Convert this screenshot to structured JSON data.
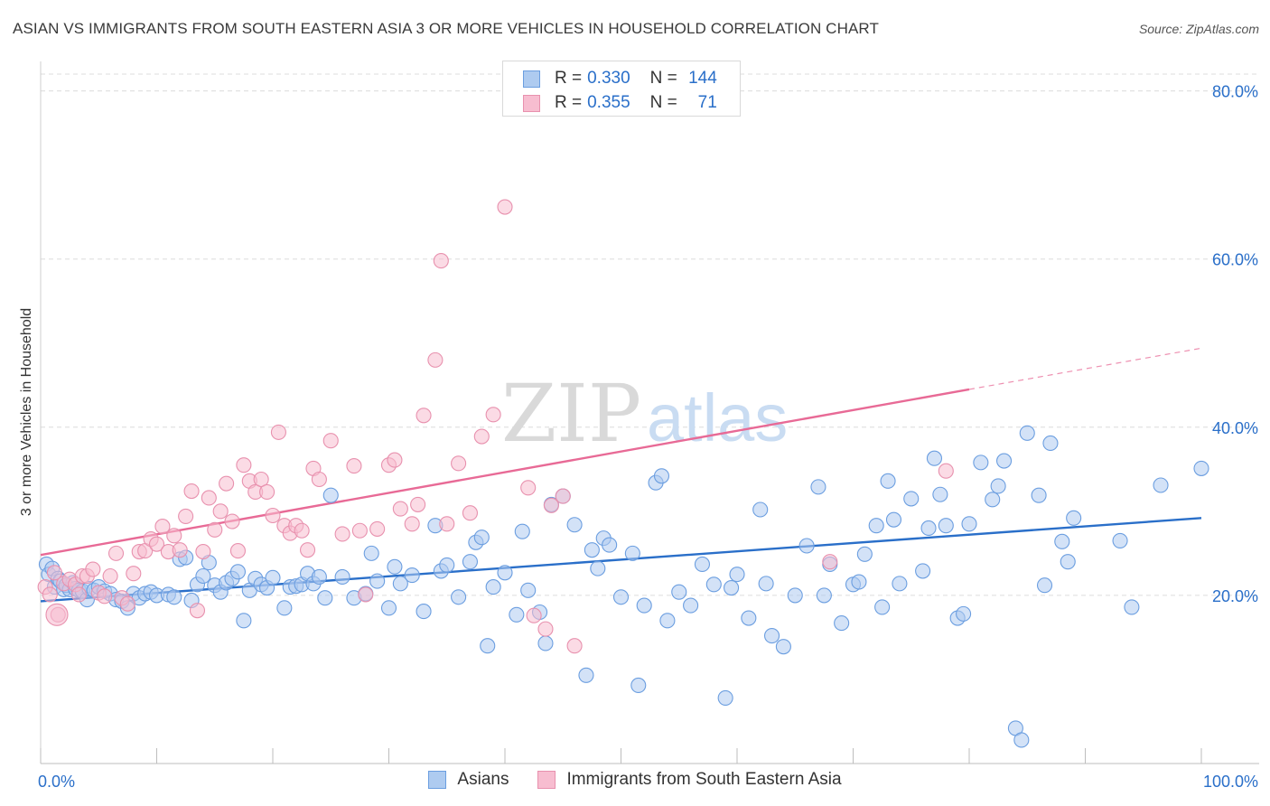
{
  "title": "ASIAN VS IMMIGRANTS FROM SOUTH EASTERN ASIA 3 OR MORE VEHICLES IN HOUSEHOLD CORRELATION CHART",
  "source": "Source: ZipAtlas.com",
  "watermark": {
    "part1": "ZIP",
    "part2": "atlas"
  },
  "legend": {
    "r_label": "R =",
    "n_label": "N =",
    "rows": [
      {
        "r": "0.330",
        "n": "144",
        "fill": "#aecbf0",
        "stroke": "#6b9ee0"
      },
      {
        "r": "0.355",
        "n": "71",
        "fill": "#f7bdd0",
        "stroke": "#e891ae"
      }
    ]
  },
  "bottom_legend": [
    {
      "label": "Asians",
      "fill": "#aecbf0",
      "stroke": "#6b9ee0"
    },
    {
      "label": "Immigrants from South Eastern Asia",
      "fill": "#f7bdd0",
      "stroke": "#e891ae"
    }
  ],
  "chart_data": {
    "type": "scatter",
    "title": "ASIAN VS IMMIGRANTS FROM SOUTH EASTERN ASIA 3 OR MORE VEHICLES IN HOUSEHOLD CORRELATION CHART",
    "xlabel": "",
    "ylabel": "3 or more Vehicles in Household",
    "xlim": [
      0,
      100
    ],
    "ylim": [
      0,
      82
    ],
    "x_tick_labels": [
      "0.0%",
      "100.0%"
    ],
    "y_ticks": [
      20,
      40,
      60,
      80
    ],
    "y_tick_labels": [
      "20.0%",
      "40.0%",
      "60.0%",
      "80.0%"
    ],
    "grid": true,
    "series": [
      {
        "name": "Asians",
        "color": "#6b9ee0",
        "fill": "#aecbf0",
        "line_color": "#2a6fc9",
        "trend": {
          "x0": 0,
          "y0": 19.3,
          "x1": 100,
          "y1": 29.2
        },
        "points": [
          [
            0.5,
            23.7
          ],
          [
            0.7,
            22.5
          ],
          [
            1.0,
            23.2
          ],
          [
            1.2,
            21.0
          ],
          [
            1.5,
            22.0
          ],
          [
            1.7,
            21.7
          ],
          [
            2.0,
            20.7
          ],
          [
            2.2,
            21.2
          ],
          [
            2.5,
            20.7
          ],
          [
            2.8,
            21.5
          ],
          [
            3.0,
            20.8
          ],
          [
            3.3,
            20.6
          ],
          [
            3.6,
            20.5
          ],
          [
            4.0,
            19.5
          ],
          [
            4.2,
            20.8
          ],
          [
            4.6,
            20.6
          ],
          [
            5.0,
            21.0
          ],
          [
            5.5,
            20.5
          ],
          [
            6.0,
            20.2
          ],
          [
            6.5,
            19.5
          ],
          [
            7.0,
            19.3
          ],
          [
            7.5,
            18.5
          ],
          [
            8.0,
            20.2
          ],
          [
            8.5,
            19.7
          ],
          [
            9.0,
            20.2
          ],
          [
            9.5,
            20.4
          ],
          [
            10.0,
            20.0
          ],
          [
            11.0,
            20.1
          ],
          [
            11.5,
            19.8
          ],
          [
            12.0,
            24.3
          ],
          [
            12.5,
            24.5
          ],
          [
            13.0,
            19.4
          ],
          [
            13.5,
            21.3
          ],
          [
            14.0,
            22.3
          ],
          [
            14.5,
            23.9
          ],
          [
            15.0,
            21.2
          ],
          [
            15.5,
            20.4
          ],
          [
            16.0,
            21.5
          ],
          [
            16.5,
            22.0
          ],
          [
            17.0,
            22.8
          ],
          [
            17.5,
            17.0
          ],
          [
            18.0,
            20.6
          ],
          [
            18.5,
            22.0
          ],
          [
            19.0,
            21.3
          ],
          [
            19.5,
            20.9
          ],
          [
            20.0,
            22.1
          ],
          [
            21.0,
            18.5
          ],
          [
            21.5,
            21.0
          ],
          [
            22.0,
            21.1
          ],
          [
            22.5,
            21.3
          ],
          [
            23.0,
            22.6
          ],
          [
            23.5,
            21.4
          ],
          [
            24.0,
            22.2
          ],
          [
            24.5,
            19.7
          ],
          [
            25.0,
            31.9
          ],
          [
            26.0,
            22.2
          ],
          [
            27.0,
            19.7
          ],
          [
            28.0,
            20.2
          ],
          [
            28.5,
            25.0
          ],
          [
            29.0,
            21.7
          ],
          [
            30.0,
            18.5
          ],
          [
            30.5,
            23.4
          ],
          [
            31.0,
            21.4
          ],
          [
            32.0,
            22.4
          ],
          [
            33.0,
            18.1
          ],
          [
            34.0,
            28.3
          ],
          [
            34.5,
            22.9
          ],
          [
            35.0,
            23.6
          ],
          [
            36.0,
            19.8
          ],
          [
            37.0,
            24.0
          ],
          [
            37.5,
            26.3
          ],
          [
            38.0,
            26.9
          ],
          [
            38.5,
            14.0
          ],
          [
            39.0,
            21.0
          ],
          [
            40.0,
            22.7
          ],
          [
            41.0,
            17.7
          ],
          [
            41.5,
            27.6
          ],
          [
            42.0,
            20.6
          ],
          [
            43.0,
            18.0
          ],
          [
            43.5,
            14.3
          ],
          [
            44.0,
            30.8
          ],
          [
            45.0,
            31.8
          ],
          [
            46.0,
            28.4
          ],
          [
            47.0,
            10.5
          ],
          [
            47.5,
            25.4
          ],
          [
            48.0,
            23.2
          ],
          [
            48.5,
            26.8
          ],
          [
            49.0,
            26.0
          ],
          [
            50.0,
            19.8
          ],
          [
            51.0,
            25.0
          ],
          [
            51.5,
            9.3
          ],
          [
            52.0,
            18.8
          ],
          [
            53.0,
            33.4
          ],
          [
            53.5,
            34.2
          ],
          [
            54.0,
            17.0
          ],
          [
            55.0,
            20.4
          ],
          [
            56.0,
            18.8
          ],
          [
            57.0,
            23.7
          ],
          [
            58.0,
            21.3
          ],
          [
            59.0,
            7.8
          ],
          [
            59.5,
            20.9
          ],
          [
            60.0,
            22.5
          ],
          [
            61.0,
            17.3
          ],
          [
            62.0,
            30.2
          ],
          [
            62.5,
            21.4
          ],
          [
            63.0,
            15.2
          ],
          [
            64.0,
            13.9
          ],
          [
            65.0,
            20.0
          ],
          [
            66.0,
            25.9
          ],
          [
            67.0,
            32.9
          ],
          [
            67.5,
            20.0
          ],
          [
            68.0,
            23.7
          ],
          [
            69.0,
            16.7
          ],
          [
            70.0,
            21.3
          ],
          [
            70.5,
            21.6
          ],
          [
            71.0,
            24.9
          ],
          [
            72.0,
            28.3
          ],
          [
            72.5,
            18.6
          ],
          [
            73.0,
            33.6
          ],
          [
            73.5,
            29.0
          ],
          [
            74.0,
            21.4
          ],
          [
            75.0,
            31.5
          ],
          [
            76.0,
            22.9
          ],
          [
            76.5,
            28.0
          ],
          [
            77.0,
            36.3
          ],
          [
            77.5,
            32.0
          ],
          [
            78.0,
            28.3
          ],
          [
            79.0,
            17.3
          ],
          [
            79.5,
            17.8
          ],
          [
            80.0,
            28.5
          ],
          [
            81.0,
            35.8
          ],
          [
            82.0,
            31.4
          ],
          [
            82.5,
            33.0
          ],
          [
            83.0,
            36.0
          ],
          [
            84.0,
            4.2
          ],
          [
            84.5,
            2.8
          ],
          [
            85.0,
            39.3
          ],
          [
            86.0,
            31.9
          ],
          [
            86.5,
            21.2
          ],
          [
            87.0,
            38.1
          ],
          [
            88.0,
            26.4
          ],
          [
            88.5,
            24.0
          ],
          [
            89.0,
            29.2
          ],
          [
            93.0,
            26.5
          ],
          [
            94.0,
            18.6
          ],
          [
            96.5,
            33.1
          ],
          [
            100.0,
            35.1
          ]
        ],
        "radius": 8
      },
      {
        "name": "Immigrants from South Eastern Asia",
        "color": "#e891ae",
        "fill": "#f7bdd0",
        "line_color": "#e86a96",
        "trend": {
          "x0": 0,
          "y0": 24.8,
          "x1": 80,
          "y1": 44.5
        },
        "trend_dashed_to": {
          "x": 100,
          "y": 49.4
        },
        "points": [
          [
            0.4,
            21.0
          ],
          [
            0.8,
            20.1
          ],
          [
            1.2,
            22.7
          ],
          [
            1.5,
            17.7
          ],
          [
            2.0,
            21.4
          ],
          [
            2.5,
            21.9
          ],
          [
            3.0,
            21.3
          ],
          [
            3.3,
            20.1
          ],
          [
            3.6,
            22.3
          ],
          [
            4.0,
            22.3
          ],
          [
            4.5,
            23.1
          ],
          [
            5.0,
            20.3
          ],
          [
            5.5,
            19.9
          ],
          [
            6.0,
            22.3
          ],
          [
            6.5,
            25.0
          ],
          [
            7.0,
            19.7
          ],
          [
            7.5,
            19.0
          ],
          [
            8.0,
            22.6
          ],
          [
            8.5,
            25.2
          ],
          [
            9.0,
            25.3
          ],
          [
            9.5,
            26.7
          ],
          [
            10.0,
            26.1
          ],
          [
            10.5,
            28.2
          ],
          [
            11.0,
            25.2
          ],
          [
            11.5,
            27.1
          ],
          [
            12.0,
            25.4
          ],
          [
            12.5,
            29.4
          ],
          [
            13.0,
            32.4
          ],
          [
            13.5,
            18.2
          ],
          [
            14.0,
            25.2
          ],
          [
            14.5,
            31.6
          ],
          [
            15.0,
            27.8
          ],
          [
            15.5,
            30.0
          ],
          [
            16.0,
            33.3
          ],
          [
            16.5,
            28.8
          ],
          [
            17.0,
            25.3
          ],
          [
            17.5,
            35.5
          ],
          [
            18.0,
            33.6
          ],
          [
            18.5,
            32.3
          ],
          [
            19.0,
            33.8
          ],
          [
            19.5,
            32.3
          ],
          [
            20.0,
            29.5
          ],
          [
            20.5,
            39.4
          ],
          [
            21.0,
            28.3
          ],
          [
            21.5,
            27.4
          ],
          [
            22.0,
            28.3
          ],
          [
            22.5,
            27.7
          ],
          [
            23.0,
            25.4
          ],
          [
            23.5,
            35.1
          ],
          [
            24.0,
            33.8
          ],
          [
            25.0,
            38.4
          ],
          [
            26.0,
            27.3
          ],
          [
            27.0,
            35.4
          ],
          [
            27.5,
            27.7
          ],
          [
            28.0,
            20.1
          ],
          [
            29.0,
            27.9
          ],
          [
            30.0,
            35.5
          ],
          [
            30.5,
            36.1
          ],
          [
            31.0,
            30.3
          ],
          [
            32.0,
            28.5
          ],
          [
            32.5,
            30.8
          ],
          [
            33.0,
            41.4
          ],
          [
            34.0,
            48.0
          ],
          [
            34.5,
            59.8
          ],
          [
            35.0,
            28.5
          ],
          [
            36.0,
            35.7
          ],
          [
            37.0,
            29.8
          ],
          [
            38.0,
            38.9
          ],
          [
            39.0,
            41.5
          ],
          [
            40.0,
            66.2
          ],
          [
            42.0,
            32.8
          ],
          [
            42.5,
            17.6
          ],
          [
            43.5,
            16.0
          ],
          [
            44.0,
            30.7
          ],
          [
            45.0,
            31.8
          ],
          [
            46.0,
            14.0
          ],
          [
            68.0,
            24.0
          ],
          [
            78.0,
            34.8
          ]
        ],
        "radius": 8
      }
    ]
  }
}
